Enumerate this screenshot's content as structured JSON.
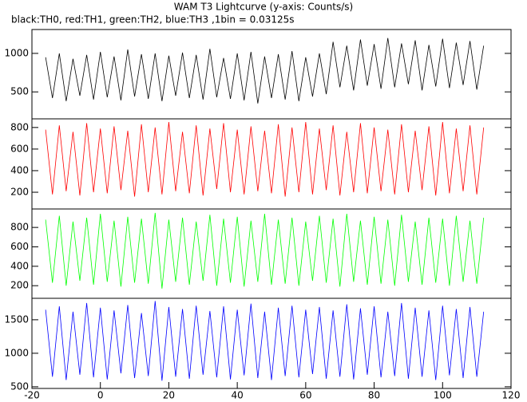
{
  "title": "WAM T3 Lightcurve (y-axis: Counts/s)",
  "subtitle": "black:TH0, red:TH1, green:TH2, blue:TH3 ,1bin = 0.03125s",
  "chart_data": [
    {
      "type": "line",
      "xlim": [
        -20,
        120
      ],
      "ylim": [
        150,
        1310
      ],
      "yticks": [
        500,
        1000
      ],
      "x": [
        -16,
        -14,
        -12,
        -10,
        -8,
        -6,
        -4,
        -2,
        0,
        2,
        4,
        6,
        8,
        10,
        12,
        14,
        16,
        18,
        20,
        22,
        24,
        26,
        28,
        30,
        32,
        34,
        36,
        38,
        40,
        42,
        44,
        46,
        48,
        50,
        52,
        54,
        56,
        58,
        60,
        62,
        64,
        66,
        68,
        70,
        72,
        74,
        76,
        78,
        80,
        82,
        84,
        86,
        88,
        90,
        92,
        94,
        96,
        98,
        100,
        102,
        104,
        106,
        108,
        110,
        112
      ],
      "series": [
        {
          "color": "#000000",
          "values": [
            950,
            420,
            1000,
            380,
            930,
            450,
            980,
            400,
            1020,
            430,
            960,
            390,
            1050,
            440,
            990,
            410,
            1000,
            380,
            970,
            450,
            1010,
            420,
            980,
            400,
            1060,
            430,
            940,
            410,
            1000,
            390,
            1020,
            350,
            960,
            420,
            990,
            400,
            1030,
            380,
            950,
            440,
            1000,
            470,
            1150,
            560,
            1100,
            520,
            1180,
            580,
            1120,
            540,
            1200,
            560,
            1130,
            600,
            1170,
            520,
            1110,
            570,
            1190,
            550,
            1140,
            590,
            1160,
            530,
            1100
          ]
        }
      ]
    },
    {
      "type": "line",
      "xlim": [
        -20,
        120
      ],
      "ylim": [
        45,
        880
      ],
      "yticks": [
        200,
        400,
        600,
        800
      ],
      "x": [
        -16,
        -14,
        -12,
        -10,
        -8,
        -6,
        -4,
        -2,
        0,
        2,
        4,
        6,
        8,
        10,
        12,
        14,
        16,
        18,
        20,
        22,
        24,
        26,
        28,
        30,
        32,
        34,
        36,
        38,
        40,
        42,
        44,
        46,
        48,
        50,
        52,
        54,
        56,
        58,
        60,
        62,
        64,
        66,
        68,
        70,
        72,
        74,
        76,
        78,
        80,
        82,
        84,
        86,
        88,
        90,
        92,
        94,
        96,
        98,
        100,
        102,
        104,
        106,
        108,
        110,
        112
      ],
      "series": [
        {
          "color": "#ff0000",
          "values": [
            780,
            180,
            820,
            210,
            760,
            170,
            840,
            200,
            790,
            190,
            810,
            220,
            770,
            160,
            830,
            200,
            800,
            180,
            850,
            210,
            760,
            190,
            820,
            170,
            790,
            230,
            840,
            200,
            780,
            180,
            810,
            210,
            770,
            190,
            830,
            160,
            800,
            200,
            850,
            180,
            790,
            220,
            820,
            170,
            760,
            200,
            840,
            190,
            800,
            210,
            780,
            180,
            830,
            200,
            770,
            220,
            810,
            170,
            850,
            190,
            790,
            210,
            820,
            180,
            800
          ]
        }
      ]
    },
    {
      "type": "line",
      "xlim": [
        -20,
        120
      ],
      "ylim": [
        70,
        990
      ],
      "yticks": [
        200,
        400,
        600,
        800
      ],
      "x": [
        -16,
        -14,
        -12,
        -10,
        -8,
        -6,
        -4,
        -2,
        0,
        2,
        4,
        6,
        8,
        10,
        12,
        14,
        16,
        18,
        20,
        22,
        24,
        26,
        28,
        30,
        32,
        34,
        36,
        38,
        40,
        42,
        44,
        46,
        48,
        50,
        52,
        54,
        56,
        58,
        60,
        62,
        64,
        66,
        68,
        70,
        72,
        74,
        76,
        78,
        80,
        82,
        84,
        86,
        88,
        90,
        92,
        94,
        96,
        98,
        100,
        102,
        104,
        106,
        108,
        110,
        112
      ],
      "series": [
        {
          "color": "#00ff00",
          "values": [
            880,
            230,
            920,
            200,
            860,
            250,
            900,
            210,
            940,
            240,
            870,
            190,
            910,
            230,
            890,
            220,
            950,
            170,
            880,
            240,
            900,
            210,
            860,
            250,
            930,
            200,
            890,
            230,
            910,
            190,
            870,
            240,
            940,
            210,
            880,
            220,
            900,
            200,
            860,
            250,
            920,
            230,
            890,
            190,
            940,
            240,
            870,
            210,
            910,
            220,
            880,
            200,
            930,
            240,
            860,
            210,
            900,
            230,
            890,
            200,
            920,
            240,
            870,
            220,
            900
          ]
        }
      ]
    },
    {
      "type": "line",
      "xlim": [
        -20,
        120
      ],
      "ylim": [
        475,
        1820
      ],
      "yticks": [
        500,
        1000,
        1500
      ],
      "xticks": [
        -20,
        0,
        20,
        40,
        60,
        80,
        100,
        120
      ],
      "x": [
        -16,
        -14,
        -12,
        -10,
        -8,
        -6,
        -4,
        -2,
        0,
        2,
        4,
        6,
        8,
        10,
        12,
        14,
        16,
        18,
        20,
        22,
        24,
        26,
        28,
        30,
        32,
        34,
        36,
        38,
        40,
        42,
        44,
        46,
        48,
        50,
        52,
        54,
        56,
        58,
        60,
        62,
        64,
        66,
        68,
        70,
        72,
        74,
        76,
        78,
        80,
        82,
        84,
        86,
        88,
        90,
        92,
        94,
        96,
        98,
        100,
        102,
        104,
        106,
        108,
        110,
        112
      ],
      "series": [
        {
          "color": "#0000ff",
          "values": [
            1650,
            650,
            1700,
            600,
            1620,
            680,
            1750,
            640,
            1680,
            610,
            1640,
            700,
            1720,
            630,
            1600,
            660,
            1780,
            590,
            1690,
            650,
            1660,
            620,
            1710,
            680,
            1630,
            640,
            1700,
            610,
            1650,
            670,
            1740,
            630,
            1620,
            600,
            1680,
            660,
            1710,
            640,
            1650,
            690,
            1690,
            620,
            1640,
            650,
            1730,
            610,
            1670,
            680,
            1700,
            640,
            1620,
            660,
            1750,
            620,
            1680,
            650,
            1640,
            600,
            1710,
            670,
            1660,
            630,
            1690,
            650,
            1620
          ]
        }
      ]
    }
  ]
}
